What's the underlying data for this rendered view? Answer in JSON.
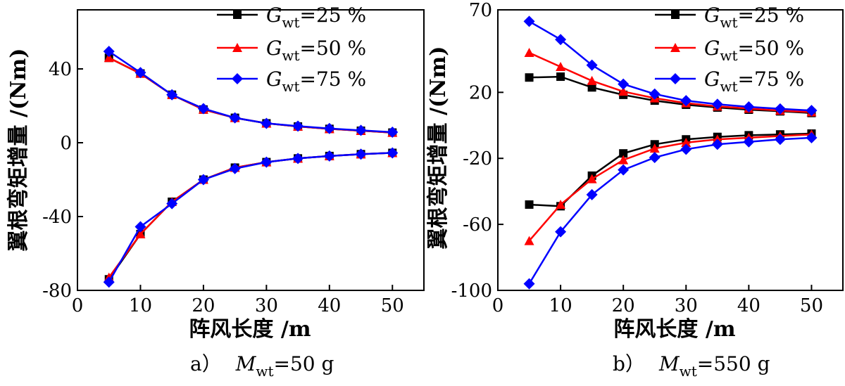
{
  "chart_data": [
    {
      "type": "line",
      "id": "a",
      "caption_prefix": "a）",
      "caption_var": "M",
      "caption_sub": "wt",
      "caption_value": "=50 g",
      "xlabel": "阵风长度 /m",
      "ylabel": "翼根弯矩增量 /(Nm)",
      "xlim": [
        0,
        55
      ],
      "ylim": [
        -80,
        72
      ],
      "xticks": [
        0,
        10,
        20,
        30,
        40,
        50
      ],
      "yticks": [
        -80,
        -40,
        0,
        40
      ],
      "x": [
        5,
        10,
        15,
        20,
        25,
        30,
        35,
        40,
        45,
        50
      ],
      "series": [
        {
          "name": "25 %",
          "color": "#000000",
          "marker": "square",
          "upper": [
            46,
            37.5,
            26,
            18,
            13.5,
            10.5,
            8.8,
            7.5,
            6.5,
            5.5
          ],
          "lower": [
            -74,
            -49.5,
            -32,
            -20,
            -13.5,
            -10.5,
            -8.5,
            -7.2,
            -6.2,
            -5.5
          ]
        },
        {
          "name": "50 %",
          "color": "#ff0000",
          "marker": "triangle",
          "upper": [
            46,
            37.5,
            26,
            18,
            13.5,
            10.5,
            8.8,
            7.5,
            6.5,
            5.5
          ],
          "lower": [
            -73,
            -49.5,
            -32,
            -20,
            -13.5,
            -10.5,
            -8.5,
            -7.2,
            -6.2,
            -5.5
          ]
        },
        {
          "name": "75 %",
          "color": "#0000ff",
          "marker": "diamond",
          "upper": [
            49.5,
            38,
            26,
            18.5,
            13.5,
            10.5,
            9,
            7.7,
            6.7,
            5.7
          ],
          "lower": [
            -75.5,
            -45.5,
            -33,
            -20,
            -14,
            -10.5,
            -8.5,
            -7.2,
            -6.2,
            -5.5
          ]
        }
      ]
    },
    {
      "type": "line",
      "id": "b",
      "caption_prefix": "b）",
      "caption_var": "M",
      "caption_sub": "wt",
      "caption_value": "=550 g",
      "xlabel": "阵风长度 /m",
      "ylabel": "翼根弯矩增量 /(Nm)",
      "xlim": [
        0,
        55
      ],
      "ylim": [
        -100,
        70
      ],
      "xticks": [
        0,
        10,
        20,
        30,
        40,
        50
      ],
      "yticks": [
        -100,
        -60,
        -20,
        20,
        70
      ],
      "x": [
        5,
        10,
        15,
        20,
        25,
        30,
        35,
        40,
        45,
        50
      ],
      "series": [
        {
          "name": "25 %",
          "color": "#000000",
          "marker": "square",
          "upper": [
            29,
            29.5,
            23,
            18.5,
            15,
            12.5,
            10.8,
            9.5,
            8.5,
            7.5
          ],
          "lower": [
            -48,
            -49,
            -30.5,
            -17,
            -11.5,
            -8.5,
            -7,
            -6,
            -5.5,
            -5
          ]
        },
        {
          "name": "50 %",
          "color": "#ff0000",
          "marker": "triangle",
          "upper": [
            44,
            35.5,
            27,
            20.5,
            16.5,
            13.5,
            11.5,
            10.2,
            9,
            8
          ],
          "lower": [
            -70,
            -48,
            -32.5,
            -21,
            -14,
            -10.5,
            -8.5,
            -7.5,
            -6.5,
            -5.5
          ]
        },
        {
          "name": "75 %",
          "color": "#0000ff",
          "marker": "diamond",
          "upper": [
            63,
            52,
            36.5,
            25,
            19,
            15,
            12.8,
            11.2,
            10,
            9
          ],
          "lower": [
            -96,
            -64.5,
            -42,
            -27,
            -19.5,
            -14.5,
            -11.5,
            -10,
            -8.5,
            -7.5
          ]
        }
      ]
    }
  ],
  "legend": {
    "var": "G",
    "sub": "wt",
    "items": [
      "=25 %",
      "=50 %",
      "=75 %"
    ]
  }
}
